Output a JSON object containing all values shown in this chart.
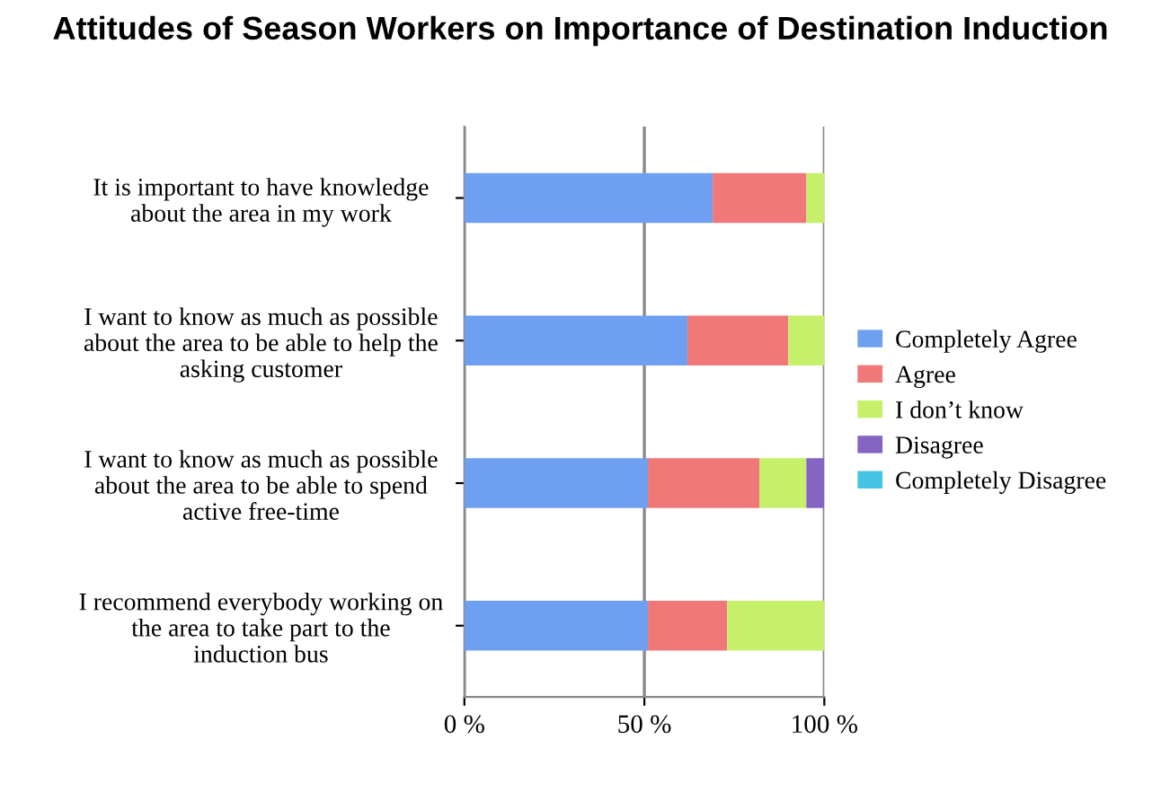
{
  "chart_data": {
    "type": "bar",
    "orientation": "horizontal",
    "stacked": true,
    "title": "Attitudes of Season Workers on Importance of Destination Induction",
    "categories": [
      "It is important to have knowledge\nabout the area in my work",
      "I want to know as much as possible\nabout the area to be able to help the\nasking customer",
      "I want to know as much as possible\nabout the area to be able to spend\nactive free-time",
      "I recommend everybody working on\nthe area to take part to the\ninduction bus"
    ],
    "series": [
      {
        "name": "Completely Agree",
        "color": "#6f9ff0",
        "values": [
          69,
          62,
          51,
          51
        ]
      },
      {
        "name": "Agree",
        "color": "#f07878",
        "values": [
          26,
          28,
          31,
          22
        ]
      },
      {
        "name": "I don’t know",
        "color": "#c6ef6a",
        "values": [
          5,
          10,
          13,
          27
        ]
      },
      {
        "name": "Disagree",
        "color": "#8466c2",
        "values": [
          0,
          0,
          5,
          0
        ]
      },
      {
        "name": "Completely Disagree",
        "color": "#46c3e3",
        "values": [
          0,
          0,
          0,
          0
        ]
      }
    ],
    "xlim": [
      0,
      100
    ],
    "xticks": [
      {
        "value": 0,
        "label": "0 %"
      },
      {
        "value": 50,
        "label": "50 %"
      },
      {
        "value": 100,
        "label": "100 %"
      }
    ],
    "grid": "x",
    "legend": "right"
  }
}
